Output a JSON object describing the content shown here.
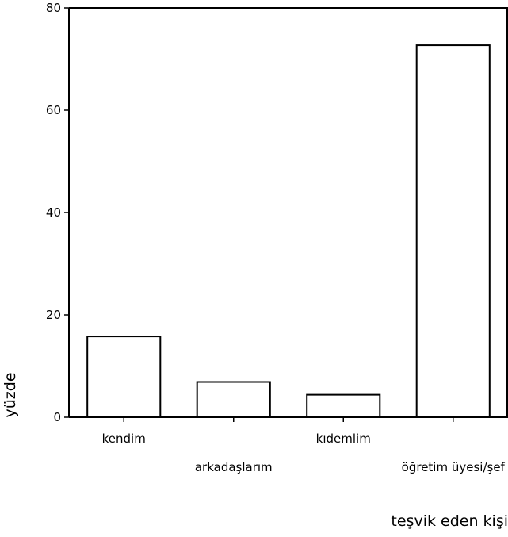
{
  "chart_data": {
    "type": "bar",
    "categories": [
      "kendim",
      "arkadaşlarım",
      "kıdemlim",
      "öğretim üyesi/şef"
    ],
    "values": [
      15.8,
      6.9,
      4.4,
      72.7
    ],
    "xlabel": "teşvik eden kişi",
    "ylabel": "yüzde",
    "ylim": [
      0,
      80
    ],
    "yticks": [
      "0",
      "20",
      "40",
      "60",
      "80"
    ],
    "grid": false,
    "bar_fill": "#ffffff",
    "bar_stroke": "#000000"
  }
}
